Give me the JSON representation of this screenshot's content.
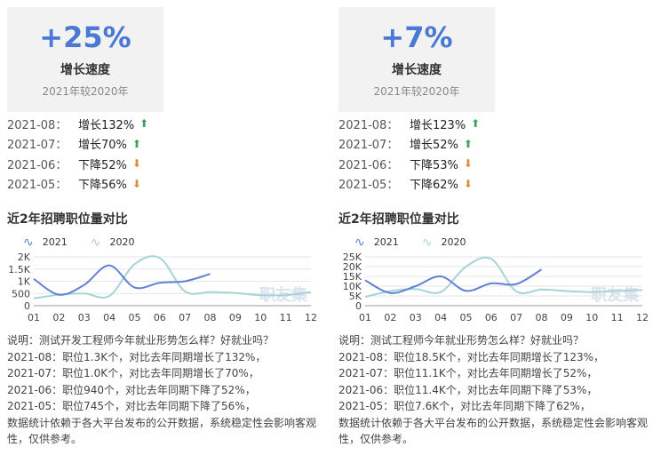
{
  "colors": {
    "series_2021": "#6281d6",
    "series_2020": "#a6d4d4",
    "accent": "#4a78d2",
    "up": "#3aa35a",
    "down": "#e08a3a"
  },
  "panels": [
    {
      "rate": {
        "value": "+25%",
        "label": "增长速度",
        "sub": "2021年较2020年"
      },
      "monthly": [
        {
          "month": "2021-08：",
          "change": "增长132%",
          "dir": "up"
        },
        {
          "month": "2021-07：",
          "change": "增长70%",
          "dir": "up"
        },
        {
          "month": "2021-06：",
          "change": "下降52%",
          "dir": "down"
        },
        {
          "month": "2021-05：",
          "change": "下降56%",
          "dir": "down"
        }
      ],
      "section_title": "近2年招聘职位量对比",
      "legend": [
        "2021",
        "2020"
      ],
      "watermark": "职友集",
      "notes": [
        "说明：测试开发工程师今年就业形势怎么样？好就业吗？",
        "2021-08：职位1.3K个，对比去年同期增长了132%，",
        "2021-07：职位1.0K个，对比去年同期增长了70%，",
        "2021-06：职位940个，对比去年同期下降了52%，",
        "2021-05：职位745个，对比去年同期下降了56%，",
        "数据统计依赖于各大平台发布的公开数据，系统稳定性会影响客观性，仅供参考。"
      ]
    },
    {
      "rate": {
        "value": "+7%",
        "label": "增长速度",
        "sub": "2021年较2020年"
      },
      "monthly": [
        {
          "month": "2021-08：",
          "change": "增长123%",
          "dir": "up"
        },
        {
          "month": "2021-07：",
          "change": "增长52%",
          "dir": "up"
        },
        {
          "month": "2021-06：",
          "change": "下降53%",
          "dir": "down"
        },
        {
          "month": "2021-05：",
          "change": "下降62%",
          "dir": "down"
        }
      ],
      "section_title": "近2年招聘职位量对比",
      "legend": [
        "2021",
        "2020"
      ],
      "watermark": "职友集",
      "notes": [
        "说明：测试工程师今年就业形势怎么样？好就业吗？",
        "2021-08：职位18.5K个，对比去年同期增长了123%，",
        "2021-07：职位11.1K个，对比去年同期增长了52%，",
        "2021-06：职位11.4K个，对比去年同期下降了53%，",
        "2021-05：职位7.6K个，对比去年同期下降了62%，",
        "数据统计依赖于各大平台发布的公开数据，系统稳定性会影响客观性，仅供参考。"
      ]
    }
  ],
  "chart_data": [
    {
      "type": "line",
      "title": "",
      "x": [
        "01",
        "02",
        "03",
        "04",
        "05",
        "06",
        "07",
        "08",
        "09",
        "10",
        "11",
        "12"
      ],
      "yticks": [
        "0",
        "500",
        "1K",
        "1.5K",
        "2K"
      ],
      "ylim": [
        0,
        2000
      ],
      "grid": true,
      "legend_position": "top-left",
      "series": [
        {
          "name": "2021",
          "values": [
            1100,
            450,
            850,
            1650,
            745,
            940,
            1000,
            1300,
            null,
            null,
            null,
            null
          ]
        },
        {
          "name": "2020",
          "values": [
            300,
            450,
            500,
            400,
            1700,
            1950,
            590,
            560,
            520,
            430,
            430,
            560
          ]
        }
      ]
    },
    {
      "type": "line",
      "title": "",
      "x": [
        "01",
        "02",
        "03",
        "04",
        "05",
        "06",
        "07",
        "08",
        "09",
        "10",
        "11",
        "12"
      ],
      "yticks": [
        "0",
        "5K",
        "10K",
        "15K",
        "20K",
        "25K"
      ],
      "ylim": [
        0,
        25000
      ],
      "grid": true,
      "legend_position": "top-left",
      "series": [
        {
          "name": "2021",
          "values": [
            13000,
            6500,
            10000,
            15000,
            7600,
            11400,
            11100,
            18500,
            null,
            null,
            null,
            null
          ]
        },
        {
          "name": "2020",
          "values": [
            4500,
            7500,
            8500,
            7000,
            20000,
            24000,
            7300,
            8300,
            7500,
            7000,
            7500,
            8000
          ]
        }
      ]
    }
  ]
}
